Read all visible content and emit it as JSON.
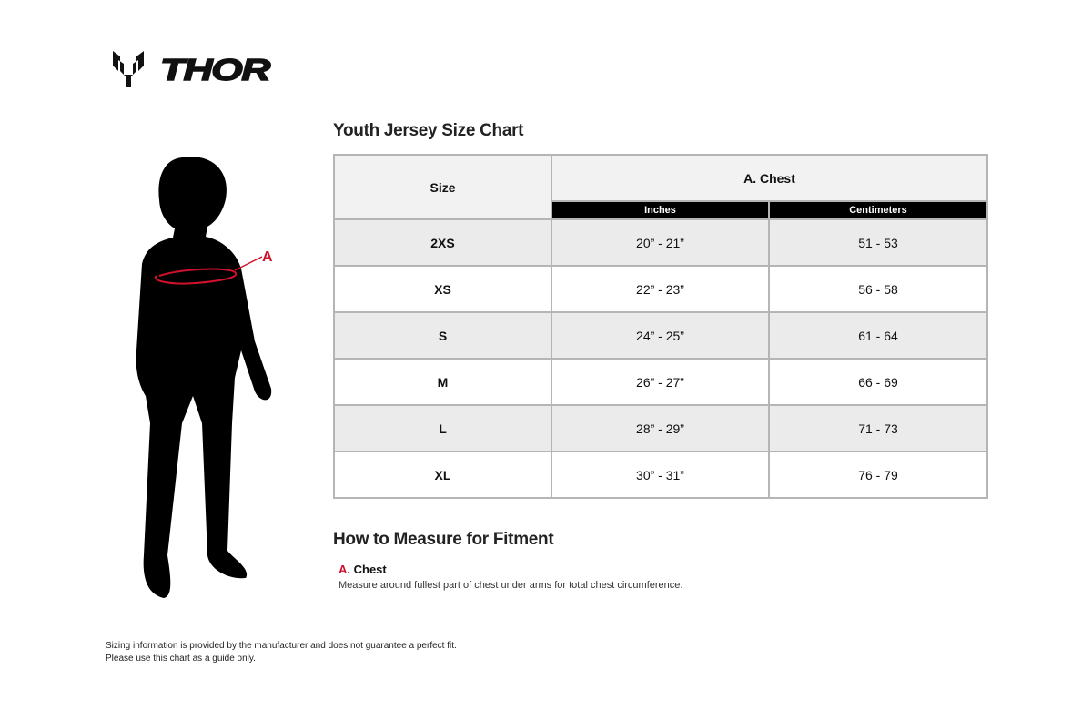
{
  "brand": {
    "name": "THOR"
  },
  "chart": {
    "title": "Youth Jersey Size Chart",
    "headers": {
      "size": "Size",
      "group": "A. Chest",
      "inches": "Inches",
      "centimeters": "Centimeters"
    },
    "rows": [
      {
        "size": "2XS",
        "inches": "20” - 21”",
        "cm": "51 - 53"
      },
      {
        "size": "XS",
        "inches": "22” - 23”",
        "cm": "56 - 58"
      },
      {
        "size": "S",
        "inches": "24” - 25”",
        "cm": "61 - 64"
      },
      {
        "size": "M",
        "inches": "26” - 27”",
        "cm": "66 - 69"
      },
      {
        "size": "L",
        "inches": "28” - 29”",
        "cm": "71 - 73"
      },
      {
        "size": "XL",
        "inches": "30” - 31”",
        "cm": "76 - 79"
      }
    ]
  },
  "figure": {
    "marker": "A",
    "accent": "#d0112b"
  },
  "measure": {
    "title": "How to Measure for Fitment",
    "letter": "A.",
    "name": "Chest",
    "description": "Measure around fullest part of chest under arms for total chest circumference."
  },
  "disclaimer": {
    "line1": "Sizing information is provided by the manufacturer and does not guarantee a perfect fit.",
    "line2": "Please use this chart as a guide only."
  }
}
